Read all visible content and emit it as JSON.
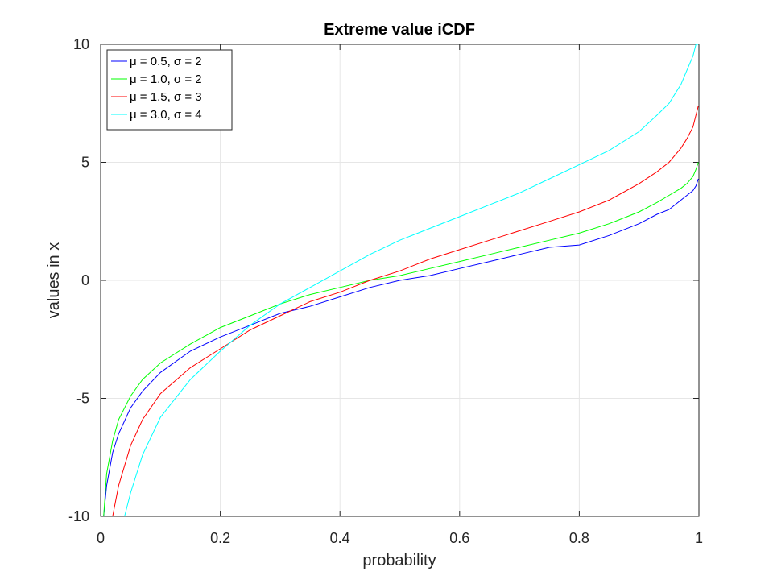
{
  "chart_data": {
    "type": "line",
    "title": "Extreme value iCDF",
    "xlabel": "probability",
    "ylabel": "values in x",
    "xlim": [
      0,
      1
    ],
    "ylim": [
      -10,
      10
    ],
    "xticks": [
      0,
      0.2,
      0.4,
      0.6,
      0.8,
      1
    ],
    "xtick_labels": [
      "0",
      "0.2",
      "0.4",
      "0.6",
      "0.8",
      "1"
    ],
    "yticks": [
      -10,
      -5,
      0,
      5,
      10
    ],
    "ytick_labels": [
      "-10",
      "-5",
      "0",
      "5",
      "10"
    ],
    "grid": true,
    "legend_position": "top-left",
    "series": [
      {
        "name": "μ = 0.5, σ = 2",
        "color": "#0000ff",
        "x": [
          0.005,
          0.01,
          0.02,
          0.03,
          0.05,
          0.07,
          0.1,
          0.15,
          0.2,
          0.25,
          0.3,
          0.35,
          0.4,
          0.45,
          0.5,
          0.55,
          0.6,
          0.65,
          0.7,
          0.75,
          0.8,
          0.85,
          0.9,
          0.93,
          0.95,
          0.97,
          0.98,
          0.99,
          0.995,
          0.999
        ],
        "y": [
          -10.1,
          -8.7,
          -7.3,
          -6.5,
          -5.4,
          -4.7,
          -3.9,
          -3.0,
          -2.4,
          -1.9,
          -1.4,
          -1.1,
          -0.7,
          -0.3,
          0.0,
          0.2,
          0.5,
          0.8,
          1.1,
          1.4,
          1.5,
          1.9,
          2.4,
          2.8,
          3.0,
          3.4,
          3.6,
          3.8,
          4.0,
          4.3
        ]
      },
      {
        "name": "μ = 1.0, σ = 2",
        "color": "#00ff00",
        "x": [
          0.005,
          0.01,
          0.02,
          0.03,
          0.05,
          0.07,
          0.1,
          0.15,
          0.2,
          0.25,
          0.3,
          0.35,
          0.4,
          0.45,
          0.5,
          0.55,
          0.6,
          0.65,
          0.7,
          0.75,
          0.8,
          0.85,
          0.9,
          0.93,
          0.95,
          0.97,
          0.98,
          0.99,
          0.995,
          0.999
        ],
        "y": [
          -10.0,
          -8.2,
          -6.8,
          -5.9,
          -4.9,
          -4.2,
          -3.5,
          -2.7,
          -2.0,
          -1.5,
          -1.0,
          -0.6,
          -0.3,
          0.0,
          0.2,
          0.5,
          0.8,
          1.1,
          1.4,
          1.7,
          2.0,
          2.4,
          2.9,
          3.3,
          3.6,
          3.9,
          4.1,
          4.4,
          4.7,
          5.0
        ]
      },
      {
        "name": "μ = 1.5, σ = 3",
        "color": "#ff0000",
        "x": [
          0.02,
          0.03,
          0.05,
          0.07,
          0.1,
          0.15,
          0.2,
          0.25,
          0.3,
          0.35,
          0.4,
          0.45,
          0.5,
          0.55,
          0.6,
          0.65,
          0.7,
          0.75,
          0.8,
          0.85,
          0.9,
          0.93,
          0.95,
          0.97,
          0.98,
          0.99,
          0.995,
          0.999
        ],
        "y": [
          -10.2,
          -8.7,
          -7.0,
          -5.9,
          -4.8,
          -3.7,
          -2.9,
          -2.1,
          -1.5,
          -0.9,
          -0.5,
          0.0,
          0.4,
          0.9,
          1.3,
          1.7,
          2.1,
          2.5,
          2.9,
          3.4,
          4.1,
          4.6,
          5.0,
          5.6,
          6.0,
          6.5,
          7.0,
          7.4
        ]
      },
      {
        "name": "μ = 3.0, σ = 4",
        "color": "#00ffff",
        "x": [
          0.04,
          0.05,
          0.07,
          0.1,
          0.15,
          0.2,
          0.25,
          0.3,
          0.35,
          0.4,
          0.45,
          0.5,
          0.55,
          0.6,
          0.65,
          0.7,
          0.75,
          0.8,
          0.85,
          0.9,
          0.93,
          0.95,
          0.97,
          0.98,
          0.99,
          0.995,
          0.999
        ],
        "y": [
          -10.1,
          -9.0,
          -7.4,
          -5.8,
          -4.2,
          -3.0,
          -1.9,
          -1.0,
          -0.3,
          0.4,
          1.1,
          1.7,
          2.2,
          2.7,
          3.2,
          3.7,
          4.3,
          4.9,
          5.5,
          6.3,
          7.0,
          7.5,
          8.3,
          8.9,
          9.5,
          10.0,
          10.0
        ]
      }
    ]
  }
}
